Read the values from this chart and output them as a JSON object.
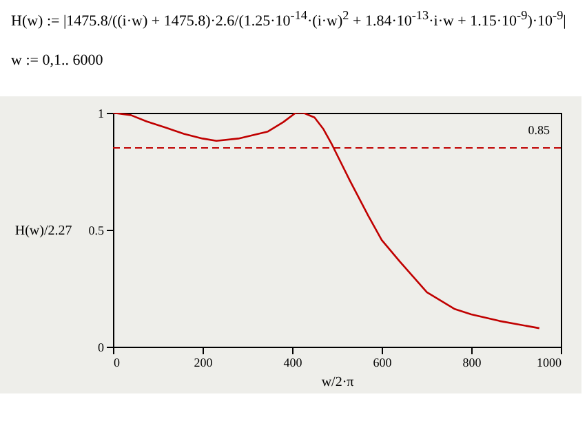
{
  "chart_data": {
    "type": "line",
    "annotations": [
      "H(w) := |1475.8/((i·w) + 1475.8)·2.6/(1.25·10$^{-14}$·(i·w)$^{2}$ + 1.84·10$^{-13}$·i·w + 1.15·10$^{-9}$)·10$^{-9}$|",
      "w := 0,1.. 6000"
    ],
    "xlabel": "w/2·π",
    "ylabel": "H(w)/2.27",
    "series": [
      {
        "color": "#c00000",
        "x": [
          0,
          40,
          75,
          120,
          158,
          200,
          231,
          280,
          346,
          380,
          408,
          425,
          450,
          470,
          489,
          529,
          570,
          600,
          640,
          701,
          762,
          800,
          863,
          952
        ],
        "values": [
          1.0,
          0.99,
          0.963,
          0.935,
          0.91,
          0.89,
          0.88,
          0.89,
          0.92,
          0.96,
          1.0,
          1.0,
          0.98,
          0.93,
          0.864,
          0.71,
          0.56,
          0.456,
          0.365,
          0.233,
          0.162,
          0.138,
          0.11,
          0.079
        ]
      }
    ],
    "xlim": [
      0,
      1000
    ],
    "ylim": [
      0,
      1
    ],
    "xticks": [
      0,
      200,
      400,
      600,
      800,
      1000
    ],
    "yticks": [
      0,
      0.5,
      1
    ],
    "ref_lines": [
      {
        "axis": "y",
        "value": 0.85,
        "label": "0.85",
        "color": "#c00000",
        "line_style": "dashed"
      }
    ],
    "grid": false
  }
}
